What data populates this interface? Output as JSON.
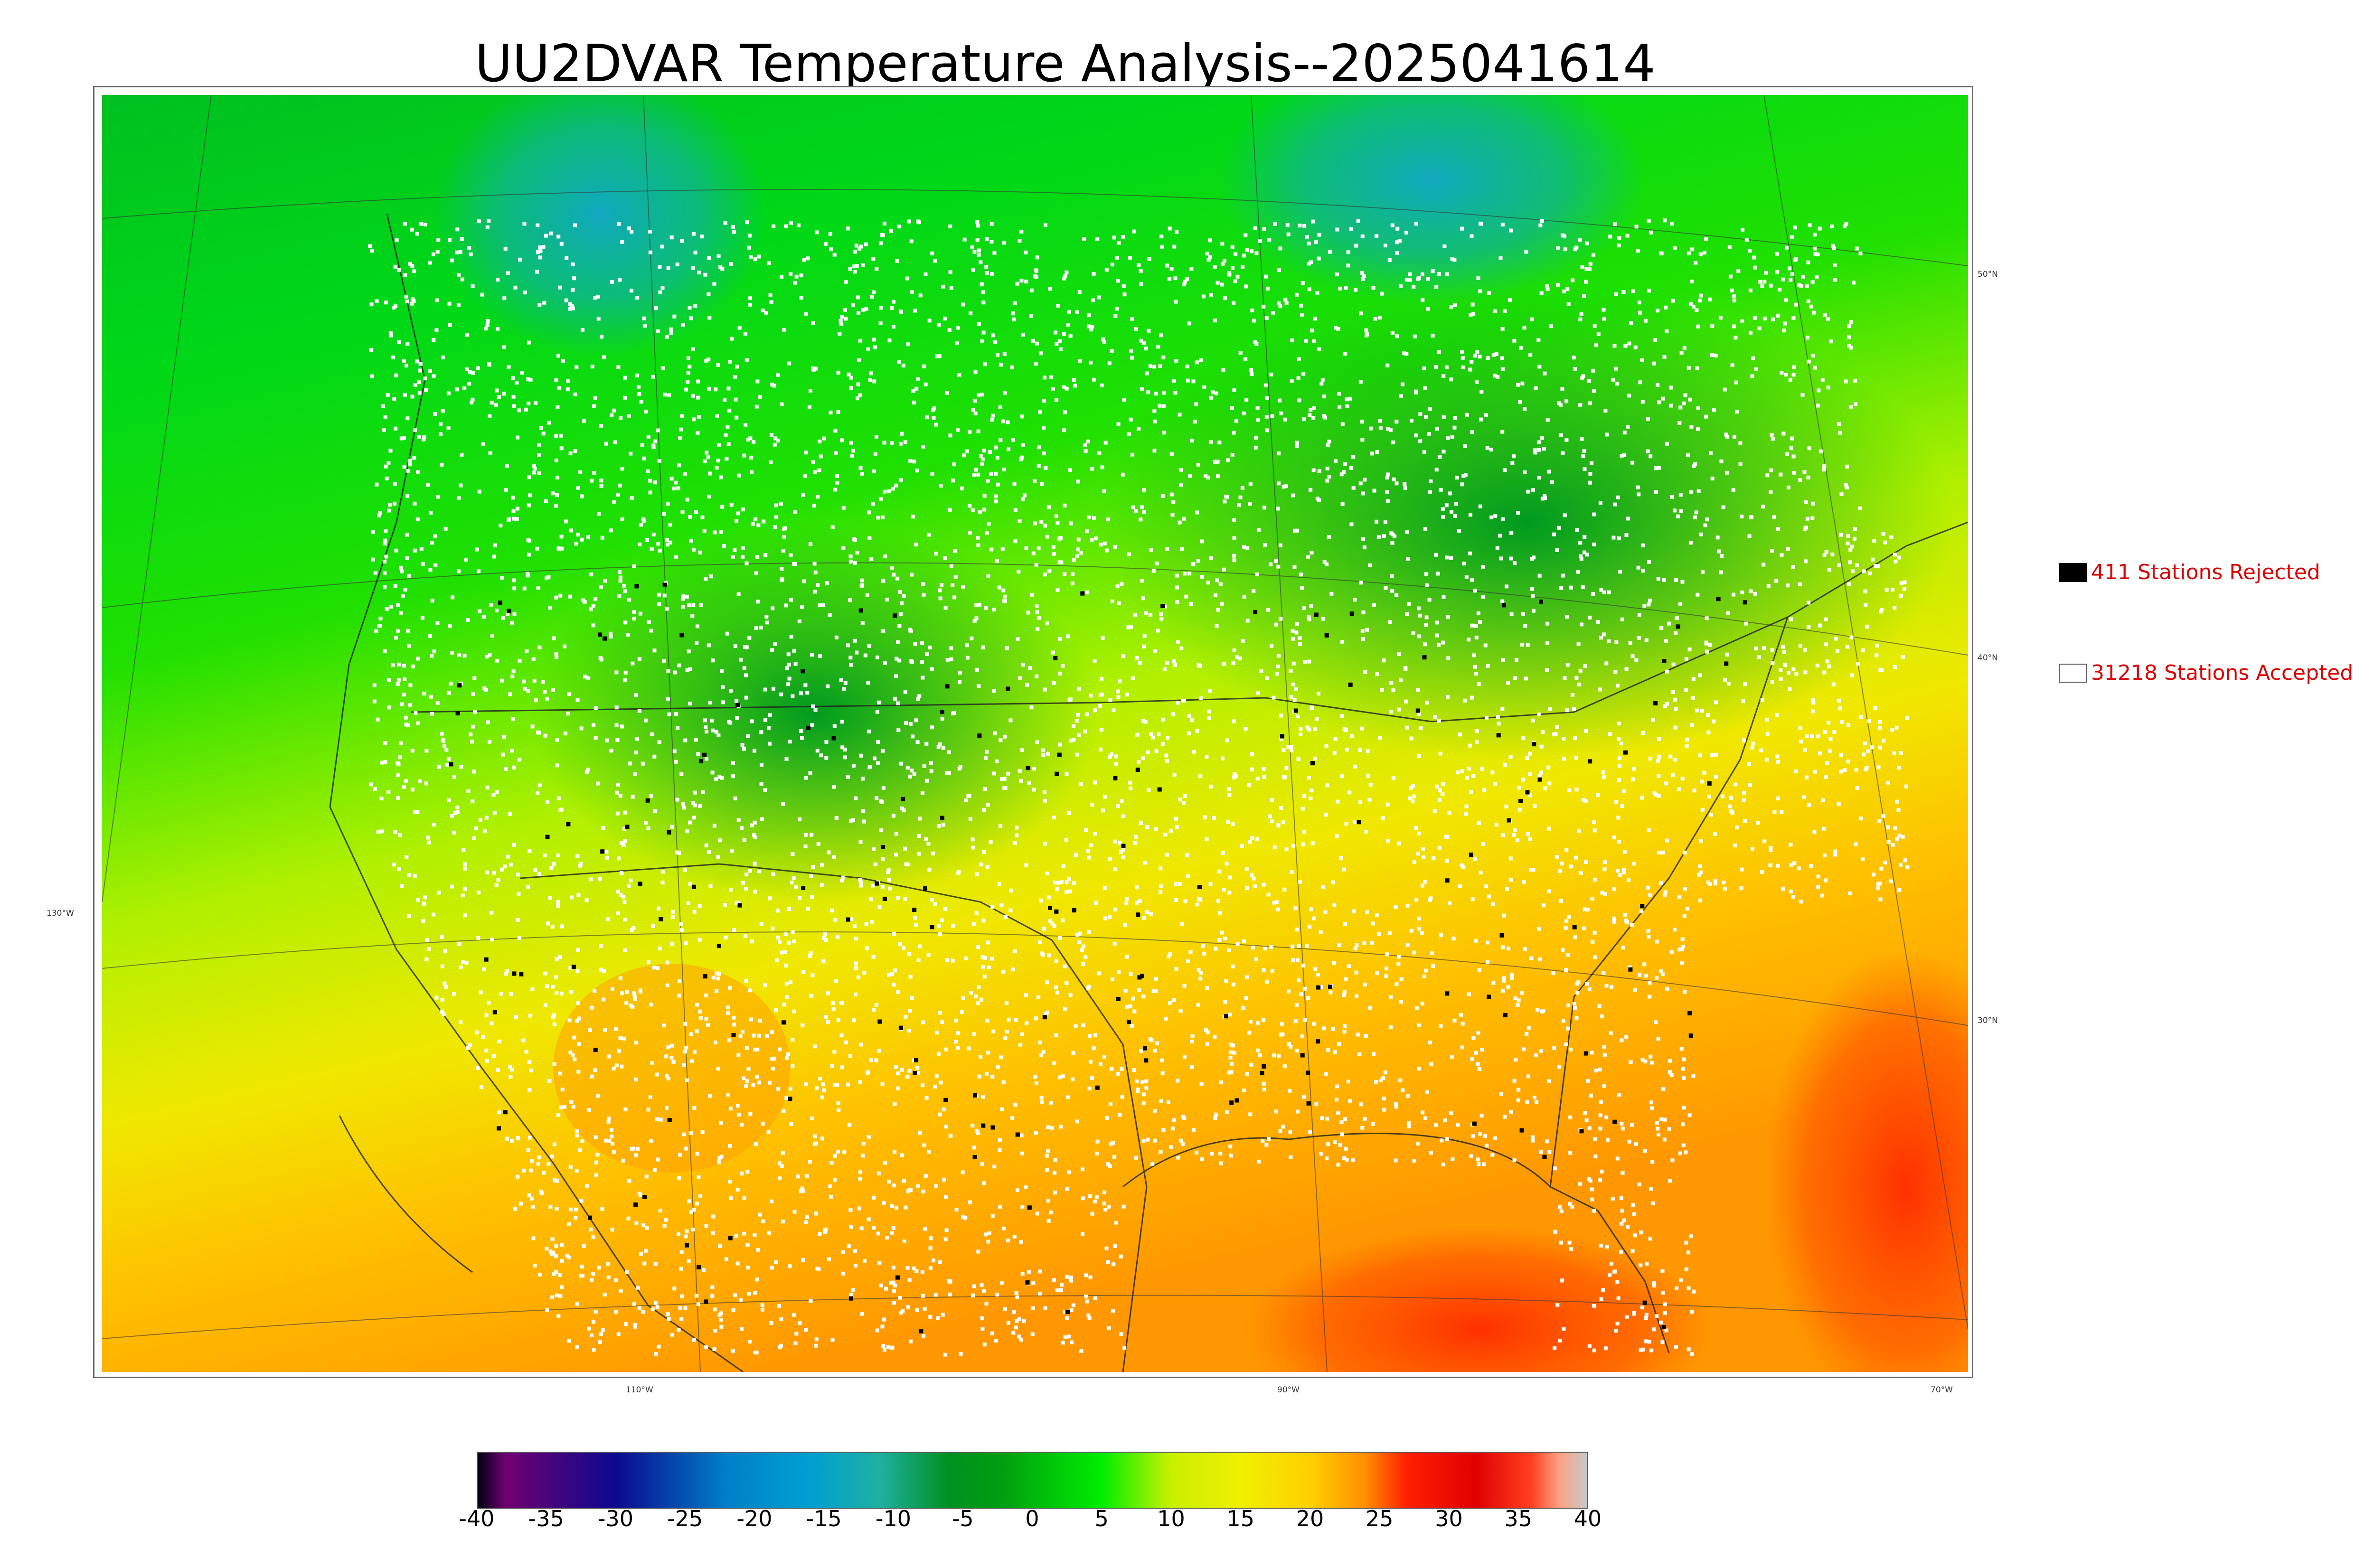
{
  "title": "UU2DVAR Temperature Analysis--2025041614",
  "map": {
    "name": "temperature-analysis-map",
    "lat_labels": [
      "50°N",
      "40°N",
      "30°N"
    ],
    "lon_labels": [
      "130°W",
      "110°W",
      "90°W",
      "70°W"
    ],
    "colors": {
      "cold_north": "#00a020",
      "mid": "#00e000",
      "warm": "#e8e000",
      "hot": "#ff8800",
      "very_hot": "#ff3000",
      "ocean_cold": "#20b0a0",
      "accepted_station": "#ffffff",
      "rejected_station": "#000000",
      "border": "#222222"
    }
  },
  "legend": {
    "rejected_label": "411 Stations Rejected",
    "accepted_label": "31218 Stations Accepted",
    "rejected_color": "#000000",
    "accepted_color": "#ffffff"
  },
  "colorbar": {
    "ticks": [
      "-40",
      "-35",
      "-30",
      "-25",
      "-20",
      "-15",
      "-10",
      "-5",
      "0",
      "5",
      "10",
      "15",
      "20",
      "25",
      "30",
      "35",
      "40"
    ],
    "stops": [
      {
        "value": -40,
        "color": "#000010"
      },
      {
        "value": -38,
        "color": "#700070"
      },
      {
        "value": -30,
        "color": "#0a0a90"
      },
      {
        "value": -22,
        "color": "#0080c8"
      },
      {
        "value": -16,
        "color": "#00a0d0"
      },
      {
        "value": -11,
        "color": "#20b0a0"
      },
      {
        "value": -6,
        "color": "#009020"
      },
      {
        "value": -2,
        "color": "#00a010"
      },
      {
        "value": 5,
        "color": "#00ee00"
      },
      {
        "value": 10,
        "color": "#c8f000"
      },
      {
        "value": 15,
        "color": "#f0f000"
      },
      {
        "value": 20,
        "color": "#ffd000"
      },
      {
        "value": 24,
        "color": "#ff9000"
      },
      {
        "value": 27,
        "color": "#ff2000"
      },
      {
        "value": 32,
        "color": "#e00000"
      },
      {
        "value": 36,
        "color": "#ff4020"
      },
      {
        "value": 38,
        "color": "#ffa080"
      },
      {
        "value": 40,
        "color": "#c8c8c8"
      }
    ]
  }
}
